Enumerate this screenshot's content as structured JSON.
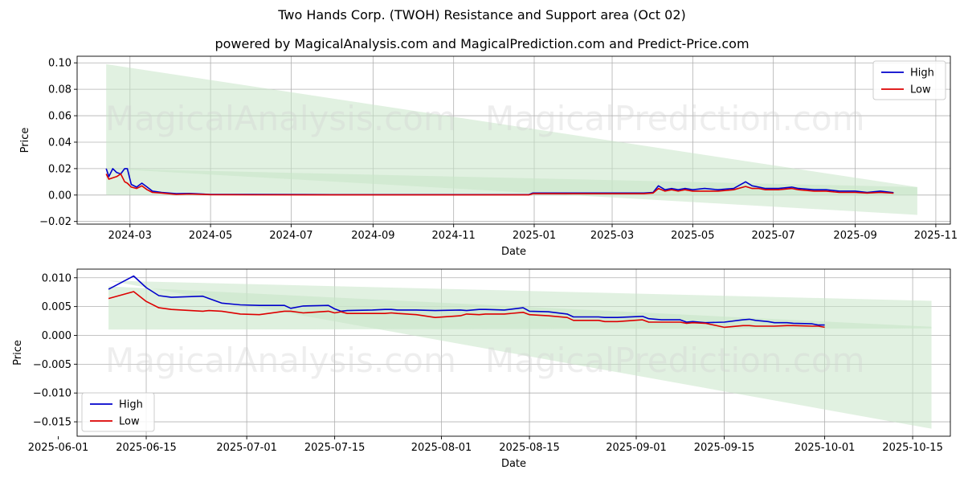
{
  "title": "Two Hands Corp. (TWOH) Resistance and Support area (Oct 02)",
  "subtitle": "powered by MagicalAnalysis.com and MagicalPrediction.com and Predict-Price.com",
  "watermarks": [
    "MagicalAnalysis.com",
    "MagicalPrediction.com"
  ],
  "colors": {
    "high": "#0000cc",
    "low": "#dd0000",
    "band": "#c8e6c8",
    "grid": "#b0b0b0"
  },
  "chart_data": [
    {
      "type": "line",
      "xlabel": "Date",
      "ylabel": "Price",
      "xlim": [
        "2024-01-21",
        "2025-11-12"
      ],
      "ylim": [
        -0.022,
        0.105
      ],
      "xticks": [
        "2024-03-01",
        "2024-05-01",
        "2024-07-01",
        "2024-09-01",
        "2024-11-01",
        "2025-01-01",
        "2025-03-01",
        "2025-05-01",
        "2025-07-01",
        "2025-09-01",
        "2025-11-01"
      ],
      "xtick_labels": [
        "2024-03",
        "2024-05",
        "2024-07",
        "2024-09",
        "2024-11",
        "2025-01",
        "2025-03",
        "2025-05",
        "2025-07",
        "2025-09",
        "2025-11"
      ],
      "yticks": [
        -0.02,
        0.0,
        0.02,
        0.04,
        0.06,
        0.08,
        0.1
      ],
      "ytick_labels": [
        "−0.02",
        "0.00",
        "0.02",
        "0.04",
        "0.06",
        "0.08",
        "0.10"
      ],
      "grid": true,
      "legend": "top-right",
      "bands": [
        {
          "x": [
            "2024-02-12",
            "2025-10-18"
          ],
          "top": [
            0.099,
            0.006
          ],
          "bottom": [
            0.02,
            -0.015
          ]
        },
        {
          "x": [
            "2024-02-12",
            "2025-10-18"
          ],
          "top": [
            0.02,
            0.006
          ],
          "bottom": [
            0.0,
            0.0
          ]
        }
      ],
      "series": [
        {
          "name": "High",
          "x": [
            "2024-02-12",
            "2024-02-14",
            "2024-02-17",
            "2024-02-20",
            "2024-02-23",
            "2024-02-26",
            "2024-02-28",
            "2024-03-02",
            "2024-03-06",
            "2024-03-10",
            "2024-03-14",
            "2024-03-18",
            "2024-03-25",
            "2024-04-05",
            "2024-04-15",
            "2024-05-01",
            "2024-06-01",
            "2024-08-01",
            "2024-10-01",
            "2024-12-28",
            "2024-12-31",
            "2025-03-25",
            "2025-04-01",
            "2025-04-05",
            "2025-04-10",
            "2025-04-15",
            "2025-04-20",
            "2025-04-25",
            "2025-05-01",
            "2025-05-10",
            "2025-05-20",
            "2025-06-01",
            "2025-06-10",
            "2025-06-15",
            "2025-06-20",
            "2025-06-25",
            "2025-07-05",
            "2025-07-15",
            "2025-07-20",
            "2025-08-01",
            "2025-08-10",
            "2025-08-20",
            "2025-09-01",
            "2025-09-10",
            "2025-09-20",
            "2025-09-30"
          ],
          "values": [
            0.02,
            0.014,
            0.02,
            0.017,
            0.016,
            0.02,
            0.02,
            0.008,
            0.006,
            0.009,
            0.006,
            0.003,
            0.002,
            0.001,
            0.0012,
            0.0005,
            0.0004,
            0.0003,
            0.0003,
            0.0003,
            0.0015,
            0.0015,
            0.002,
            0.007,
            0.004,
            0.005,
            0.004,
            0.005,
            0.004,
            0.005,
            0.004,
            0.005,
            0.01,
            0.007,
            0.006,
            0.005,
            0.005,
            0.006,
            0.005,
            0.004,
            0.004,
            0.003,
            0.003,
            0.002,
            0.003,
            0.0018
          ]
        },
        {
          "name": "Low",
          "x": [
            "2024-02-12",
            "2024-02-14",
            "2024-02-17",
            "2024-02-20",
            "2024-02-23",
            "2024-02-26",
            "2024-02-28",
            "2024-03-02",
            "2024-03-06",
            "2024-03-10",
            "2024-03-14",
            "2024-03-18",
            "2024-03-25",
            "2024-04-05",
            "2024-04-15",
            "2024-05-01",
            "2024-06-01",
            "2024-08-01",
            "2024-10-01",
            "2024-12-28",
            "2024-12-31",
            "2025-03-25",
            "2025-04-01",
            "2025-04-05",
            "2025-04-10",
            "2025-04-15",
            "2025-04-20",
            "2025-04-25",
            "2025-05-01",
            "2025-05-10",
            "2025-05-20",
            "2025-06-01",
            "2025-06-10",
            "2025-06-15",
            "2025-06-20",
            "2025-06-25",
            "2025-07-05",
            "2025-07-15",
            "2025-07-20",
            "2025-08-01",
            "2025-08-10",
            "2025-08-20",
            "2025-09-01",
            "2025-09-10",
            "2025-09-20",
            "2025-09-30"
          ],
          "values": [
            0.016,
            0.012,
            0.013,
            0.014,
            0.016,
            0.01,
            0.009,
            0.006,
            0.005,
            0.007,
            0.004,
            0.002,
            0.0015,
            0.0005,
            0.0008,
            0.0003,
            0.0002,
            0.0001,
            0.0001,
            0.0001,
            0.001,
            0.001,
            0.0015,
            0.005,
            0.003,
            0.004,
            0.003,
            0.004,
            0.003,
            0.003,
            0.003,
            0.004,
            0.0065,
            0.005,
            0.005,
            0.004,
            0.004,
            0.005,
            0.004,
            0.003,
            0.003,
            0.002,
            0.002,
            0.0015,
            0.002,
            0.0014
          ]
        }
      ]
    },
    {
      "type": "line",
      "xlabel": "Date",
      "ylabel": "Price",
      "xlim": [
        "2025-06-04",
        "2025-10-21"
      ],
      "ylim": [
        -0.0175,
        0.0115
      ],
      "xticks": [
        "2025-06-01",
        "2025-06-15",
        "2025-07-01",
        "2025-07-15",
        "2025-08-01",
        "2025-08-15",
        "2025-09-01",
        "2025-09-15",
        "2025-10-01",
        "2025-10-15"
      ],
      "xtick_labels": [
        "2025-06-01",
        "2025-06-15",
        "2025-07-01",
        "2025-07-15",
        "2025-08-01",
        "2025-08-15",
        "2025-09-01",
        "2025-09-15",
        "2025-10-01",
        "2025-10-15"
      ],
      "yticks": [
        -0.015,
        -0.01,
        -0.005,
        0.0,
        0.005,
        0.01
      ],
      "ytick_labels": [
        "−0.015",
        "−0.010",
        "−0.005",
        "0.000",
        "0.005",
        "0.010"
      ],
      "grid": true,
      "legend": "bottom-left",
      "bands": [
        {
          "x": [
            "2025-06-09",
            "2025-10-18"
          ],
          "top": [
            0.0095,
            0.006
          ],
          "bottom": [
            0.0095,
            -0.0162
          ]
        },
        {
          "x": [
            "2025-06-09",
            "2025-10-18"
          ],
          "top": [
            0.0085,
            0.0015
          ],
          "bottom": [
            0.001,
            0.0012
          ]
        }
      ],
      "series": [
        {
          "name": "High",
          "x": [
            "2025-06-09",
            "2025-06-13",
            "2025-06-15",
            "2025-06-17",
            "2025-06-19",
            "2025-06-24",
            "2025-06-25",
            "2025-06-27",
            "2025-06-30",
            "2025-07-03",
            "2025-07-07",
            "2025-07-08",
            "2025-07-10",
            "2025-07-14",
            "2025-07-15",
            "2025-07-16",
            "2025-07-17",
            "2025-07-21",
            "2025-07-23",
            "2025-07-24",
            "2025-07-25",
            "2025-07-28",
            "2025-07-31",
            "2025-08-04",
            "2025-08-05",
            "2025-08-07",
            "2025-08-08",
            "2025-08-11",
            "2025-08-14",
            "2025-08-15",
            "2025-08-18",
            "2025-08-21",
            "2025-08-22",
            "2025-08-26",
            "2025-08-27",
            "2025-08-29",
            "2025-09-02",
            "2025-09-03",
            "2025-09-05",
            "2025-09-08",
            "2025-09-09",
            "2025-09-10",
            "2025-09-12",
            "2025-09-15",
            "2025-09-18",
            "2025-09-19",
            "2025-09-20",
            "2025-09-22",
            "2025-09-23",
            "2025-09-25",
            "2025-09-26",
            "2025-09-29",
            "2025-09-30",
            "2025-10-01"
          ],
          "values": [
            0.008,
            0.0103,
            0.0083,
            0.0069,
            0.0066,
            0.0068,
            0.0064,
            0.0056,
            0.0053,
            0.0052,
            0.0052,
            0.0047,
            0.0051,
            0.0052,
            0.0046,
            0.0042,
            0.0043,
            0.0044,
            0.0045,
            0.0045,
            0.0044,
            0.0044,
            0.0043,
            0.0044,
            0.0043,
            0.0045,
            0.0045,
            0.0044,
            0.0048,
            0.0042,
            0.0041,
            0.0037,
            0.0032,
            0.0032,
            0.0031,
            0.0031,
            0.0033,
            0.0029,
            0.0027,
            0.0027,
            0.0023,
            0.0024,
            0.0022,
            0.0023,
            0.0027,
            0.0028,
            0.0026,
            0.0024,
            0.0022,
            0.0022,
            0.0021,
            0.002,
            0.0018,
            0.0018
          ]
        },
        {
          "name": "Low",
          "x": [
            "2025-06-09",
            "2025-06-13",
            "2025-06-15",
            "2025-06-17",
            "2025-06-19",
            "2025-06-24",
            "2025-06-25",
            "2025-06-27",
            "2025-06-30",
            "2025-07-03",
            "2025-07-07",
            "2025-07-08",
            "2025-07-10",
            "2025-07-14",
            "2025-07-15",
            "2025-07-16",
            "2025-07-17",
            "2025-07-21",
            "2025-07-23",
            "2025-07-24",
            "2025-07-25",
            "2025-07-28",
            "2025-07-31",
            "2025-08-04",
            "2025-08-05",
            "2025-08-07",
            "2025-08-08",
            "2025-08-11",
            "2025-08-14",
            "2025-08-15",
            "2025-08-18",
            "2025-08-21",
            "2025-08-22",
            "2025-08-26",
            "2025-08-27",
            "2025-08-29",
            "2025-09-02",
            "2025-09-03",
            "2025-09-05",
            "2025-09-08",
            "2025-09-09",
            "2025-09-10",
            "2025-09-12",
            "2025-09-15",
            "2025-09-18",
            "2025-09-19",
            "2025-09-20",
            "2025-09-22",
            "2025-09-23",
            "2025-09-25",
            "2025-09-26",
            "2025-09-29",
            "2025-09-30",
            "2025-10-01"
          ],
          "values": [
            0.0064,
            0.0076,
            0.0059,
            0.0048,
            0.0045,
            0.0042,
            0.0043,
            0.0042,
            0.0037,
            0.0036,
            0.0042,
            0.0042,
            0.0039,
            0.0042,
            0.0039,
            0.0041,
            0.0038,
            0.0038,
            0.0038,
            0.0039,
            0.0038,
            0.0036,
            0.0031,
            0.0034,
            0.0037,
            0.0036,
            0.0037,
            0.0037,
            0.004,
            0.0036,
            0.0034,
            0.0031,
            0.0026,
            0.0026,
            0.0024,
            0.0024,
            0.0027,
            0.0023,
            0.0023,
            0.0023,
            0.0021,
            0.0022,
            0.0021,
            0.0014,
            0.0017,
            0.0017,
            0.0016,
            0.0016,
            0.0016,
            0.0017,
            0.0017,
            0.0016,
            0.0016,
            0.0014
          ]
        }
      ]
    }
  ]
}
